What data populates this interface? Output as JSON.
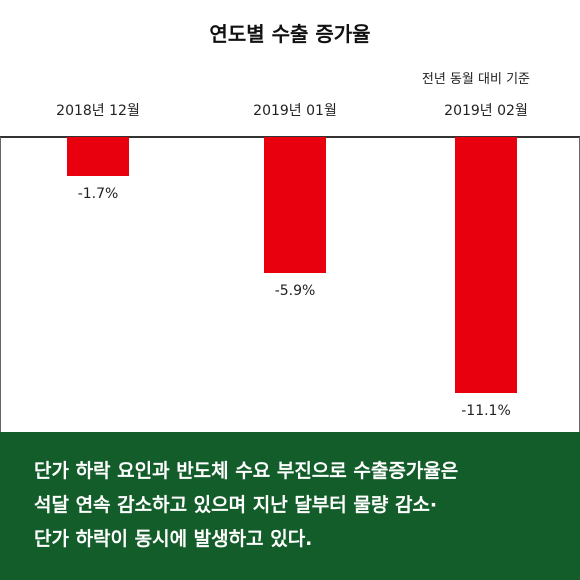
{
  "chart_data": {
    "type": "bar",
    "title": "연도별 수출 증가율",
    "subtitle": "전년 동월 대비 기준",
    "categories": [
      "2018년 12월",
      "2019년 01월",
      "2019년 02월"
    ],
    "values": [
      -1.7,
      -5.9,
      -11.1
    ],
    "value_labels": [
      "-1.7%",
      "-5.9%",
      "-11.1%"
    ],
    "ylim": [
      -12,
      0
    ],
    "bar_color": "#e8000f",
    "grid": false
  },
  "caption": {
    "lines": [
      "단가 하락 요인과 반도체 수요 부진으로 수출증가율은",
      "석달 연속 감소하고 있으며 지난 달부터 물량 감소·",
      "단가 하락이 동시에 발생하고 있다."
    ],
    "background": "#135d2b"
  }
}
